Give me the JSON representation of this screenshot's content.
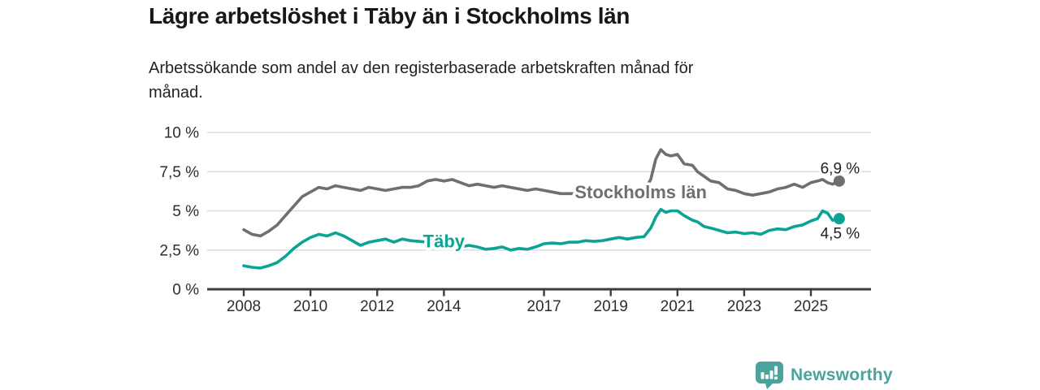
{
  "header": {
    "title": "Lägre arbetslöshet i Täby än i Stockholms län",
    "subtitle_lines": [
      "Arbetssökande som andel av den registerbaserade arbetskraften månad för",
      "månad."
    ]
  },
  "chart_data": {
    "type": "line",
    "unit": "%",
    "grid": true,
    "legend_position": "inline-labels",
    "x_axis": {
      "min": 2006.9,
      "max": 2026.8,
      "ticks": [
        {
          "value": 2008,
          "label": "2008"
        },
        {
          "value": 2010,
          "label": "2010"
        },
        {
          "value": 2012,
          "label": "2012"
        },
        {
          "value": 2014,
          "label": "2014"
        },
        {
          "value": 2017,
          "label": "2017"
        },
        {
          "value": 2019,
          "label": "2019"
        },
        {
          "value": 2021,
          "label": "2021"
        },
        {
          "value": 2023,
          "label": "2023"
        },
        {
          "value": 2025,
          "label": "2025"
        }
      ]
    },
    "y_axis": {
      "min": 0,
      "max": 10,
      "ticks": [
        {
          "value": 10,
          "label": "10 %"
        },
        {
          "value": 7.5,
          "label": "7,5 %"
        },
        {
          "value": 5,
          "label": "5 %"
        },
        {
          "value": 2.5,
          "label": "2,5 %"
        },
        {
          "value": 0,
          "label": "0 %"
        }
      ]
    },
    "colors": {
      "axis": "#3d3d3d",
      "grid": "#dcdcdc",
      "value_label": "#1f1f1f"
    },
    "series": [
      {
        "name": "Stockholms län",
        "color": "#6e6e73",
        "end_label": "6,9 %",
        "end_label_side": "above",
        "label_at": {
          "x": 2019.9,
          "y": 6.2
        },
        "x": [
          2008.0,
          2008.25,
          2008.5,
          2008.75,
          2009.0,
          2009.25,
          2009.5,
          2009.75,
          2010.0,
          2010.25,
          2010.5,
          2010.75,
          2011.0,
          2011.25,
          2011.5,
          2011.75,
          2012.0,
          2012.25,
          2012.5,
          2012.75,
          2013.0,
          2013.25,
          2013.5,
          2013.75,
          2014.0,
          2014.25,
          2014.5,
          2014.75,
          2015.0,
          2015.25,
          2015.5,
          2015.75,
          2016.0,
          2016.25,
          2016.5,
          2016.75,
          2017.0,
          2017.25,
          2017.5,
          2017.75,
          2018.0,
          2018.25,
          2018.5,
          2018.75,
          2019.0,
          2019.25,
          2019.5,
          2019.75,
          2020.0,
          2020.2,
          2020.35,
          2020.5,
          2020.65,
          2020.8,
          2021.0,
          2021.2,
          2021.45,
          2021.6,
          2021.8,
          2022.0,
          2022.25,
          2022.5,
          2022.75,
          2023.0,
          2023.25,
          2023.5,
          2023.75,
          2024.0,
          2024.25,
          2024.5,
          2024.75,
          2025.0,
          2025.2,
          2025.35,
          2025.5,
          2025.65,
          2025.85
        ],
        "values": [
          3.8,
          3.5,
          3.4,
          3.7,
          4.1,
          4.7,
          5.3,
          5.9,
          6.2,
          6.5,
          6.4,
          6.6,
          6.5,
          6.4,
          6.3,
          6.5,
          6.4,
          6.3,
          6.4,
          6.5,
          6.5,
          6.6,
          6.9,
          7.0,
          6.9,
          7.0,
          6.8,
          6.6,
          6.7,
          6.6,
          6.5,
          6.6,
          6.5,
          6.4,
          6.3,
          6.4,
          6.3,
          6.2,
          6.1,
          6.1,
          6.1,
          6.0,
          6.1,
          6.1,
          6.1,
          6.1,
          6.2,
          6.2,
          6.3,
          7.0,
          8.3,
          8.9,
          8.6,
          8.5,
          8.6,
          8.0,
          7.9,
          7.5,
          7.2,
          6.9,
          6.8,
          6.4,
          6.3,
          6.1,
          6.0,
          6.1,
          6.2,
          6.4,
          6.5,
          6.7,
          6.5,
          6.8,
          6.9,
          7.0,
          6.8,
          6.7,
          6.9
        ]
      },
      {
        "name": "Täby",
        "color": "#0ba394",
        "end_label": "4,5 %",
        "end_label_side": "below",
        "label_at": {
          "x": 2014.0,
          "y": 3.05
        },
        "x": [
          2008.0,
          2008.25,
          2008.5,
          2008.75,
          2009.0,
          2009.25,
          2009.5,
          2009.75,
          2010.0,
          2010.25,
          2010.5,
          2010.75,
          2011.0,
          2011.25,
          2011.5,
          2011.75,
          2012.0,
          2012.25,
          2012.5,
          2012.75,
          2013.0,
          2013.25,
          2013.5,
          2013.75,
          2014.0,
          2014.25,
          2014.5,
          2014.75,
          2015.0,
          2015.25,
          2015.5,
          2015.75,
          2016.0,
          2016.25,
          2016.5,
          2016.75,
          2017.0,
          2017.25,
          2017.5,
          2017.75,
          2018.0,
          2018.25,
          2018.5,
          2018.75,
          2019.0,
          2019.25,
          2019.5,
          2019.75,
          2020.0,
          2020.2,
          2020.35,
          2020.5,
          2020.65,
          2020.8,
          2021.0,
          2021.2,
          2021.45,
          2021.6,
          2021.8,
          2022.0,
          2022.25,
          2022.5,
          2022.75,
          2023.0,
          2023.25,
          2023.5,
          2023.75,
          2024.0,
          2024.25,
          2024.5,
          2024.75,
          2025.0,
          2025.2,
          2025.35,
          2025.5,
          2025.65,
          2025.85
        ],
        "values": [
          1.5,
          1.4,
          1.35,
          1.5,
          1.7,
          2.1,
          2.6,
          3.0,
          3.3,
          3.5,
          3.4,
          3.6,
          3.4,
          3.1,
          2.8,
          3.0,
          3.1,
          3.2,
          3.0,
          3.2,
          3.1,
          3.05,
          3.0,
          2.9,
          2.8,
          2.75,
          2.7,
          2.8,
          2.7,
          2.55,
          2.6,
          2.7,
          2.5,
          2.6,
          2.55,
          2.7,
          2.9,
          2.95,
          2.9,
          3.0,
          3.0,
          3.1,
          3.05,
          3.1,
          3.2,
          3.3,
          3.2,
          3.3,
          3.35,
          3.9,
          4.6,
          5.1,
          4.9,
          5.0,
          5.0,
          4.7,
          4.4,
          4.3,
          4.0,
          3.9,
          3.75,
          3.6,
          3.65,
          3.55,
          3.6,
          3.5,
          3.75,
          3.85,
          3.8,
          4.0,
          4.1,
          4.35,
          4.5,
          5.0,
          4.85,
          4.4,
          4.5
        ]
      }
    ]
  },
  "footer": {
    "brand": "Newsworthy",
    "logo_icon": "newsworthy-chart-bubble-icon",
    "brand_color": "#4aa39d"
  }
}
